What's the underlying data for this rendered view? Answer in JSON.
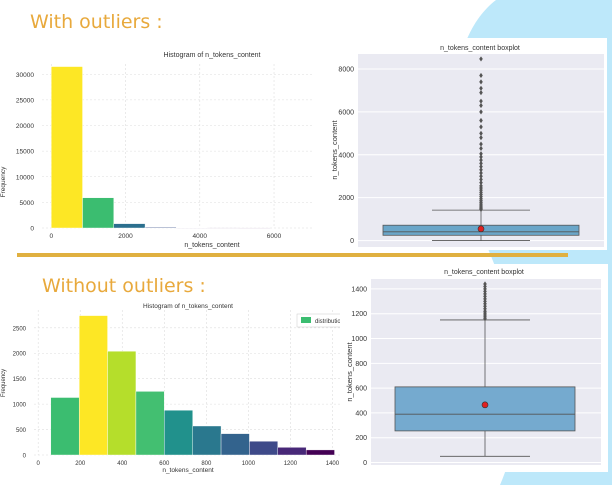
{
  "slide": {
    "heading_with": "With outliers :",
    "heading_without": "Without outliers :",
    "accent_color": "#e8a93c",
    "background_shape_color": "#bde8fa"
  },
  "chart_data": [
    {
      "id": "hist_with",
      "type": "bar",
      "title": "Histogram of n_tokens_content",
      "xlabel": "n_tokens_content",
      "ylabel": "Frequency",
      "xlim": [
        -250,
        7050
      ],
      "ylim": [
        0,
        32000
      ],
      "x_ticks": [
        0,
        2000,
        4000,
        6000
      ],
      "y_ticks": [
        0,
        5000,
        10000,
        15000,
        20000,
        25000,
        30000
      ],
      "grid": true,
      "bins": [
        {
          "x0": 0,
          "x1": 842,
          "value": 31500,
          "color": "#fde725"
        },
        {
          "x0": 842,
          "x1": 1684,
          "value": 5900,
          "color": "#3bbd70"
        },
        {
          "x0": 1684,
          "x1": 2526,
          "value": 850,
          "color": "#2b6f8e"
        },
        {
          "x0": 2526,
          "x1": 3368,
          "value": 150,
          "color": "#3b528b"
        },
        {
          "x0": 3368,
          "x1": 4210,
          "value": 40,
          "color": "#472d7b"
        },
        {
          "x0": 4210,
          "x1": 5052,
          "value": 10,
          "color": "#471365"
        },
        {
          "x0": 5052,
          "x1": 5894,
          "value": 5,
          "color": "#440154"
        }
      ]
    },
    {
      "id": "box_with",
      "type": "box",
      "title": "n_tokens_content boxplot",
      "ylabel": "n_tokens_content",
      "ylim": [
        -300,
        8700
      ],
      "y_ticks": [
        0,
        2000,
        4000,
        6000,
        8000
      ],
      "min": 0,
      "q1": 246,
      "median": 409,
      "q3": 716,
      "whisker_high": 1420,
      "mean": 546,
      "outliers": [
        1450,
        1500,
        1560,
        1620,
        1700,
        1780,
        1860,
        1950,
        2050,
        2150,
        2250,
        2350,
        2450,
        2550,
        2700,
        2850,
        3000,
        3150,
        3300,
        3450,
        3600,
        3750,
        3900,
        4050,
        4300,
        4500,
        4800,
        5000,
        5300,
        5600,
        6000,
        6300,
        6500,
        6900,
        7100,
        7400,
        7700,
        8470
      ],
      "box_color": "#6aa6c9",
      "mean_color": "#e02020"
    },
    {
      "id": "hist_without",
      "type": "bar",
      "title": "Histogram of n_tokens_content",
      "xlabel": "n_tokens_content",
      "ylabel": "Frequency",
      "legend": [
        "distribution"
      ],
      "legend_position": "top-right",
      "xlim": [
        -20,
        1455
      ],
      "ylim": [
        0,
        2850
      ],
      "x_ticks": [
        0,
        200,
        400,
        600,
        800,
        1000,
        1200,
        1400
      ],
      "y_ticks": [
        0,
        500,
        1000,
        1500,
        2000,
        2500
      ],
      "grid": true,
      "bins": [
        {
          "x0": 60,
          "x1": 195,
          "value": 1130,
          "color": "#3bbd70"
        },
        {
          "x0": 195,
          "x1": 330,
          "value": 2740,
          "color": "#fde725"
        },
        {
          "x0": 330,
          "x1": 465,
          "value": 2040,
          "color": "#b5de2b"
        },
        {
          "x0": 465,
          "x1": 600,
          "value": 1250,
          "color": "#43bf71"
        },
        {
          "x0": 600,
          "x1": 735,
          "value": 880,
          "color": "#21918c"
        },
        {
          "x0": 735,
          "x1": 870,
          "value": 570,
          "color": "#2a788e"
        },
        {
          "x0": 870,
          "x1": 1005,
          "value": 420,
          "color": "#33638d"
        },
        {
          "x0": 1005,
          "x1": 1140,
          "value": 270,
          "color": "#3e4a89"
        },
        {
          "x0": 1140,
          "x1": 1275,
          "value": 150,
          "color": "#482878"
        },
        {
          "x0": 1275,
          "x1": 1410,
          "value": 100,
          "color": "#440154"
        }
      ]
    },
    {
      "id": "box_without",
      "type": "box",
      "title": "n_tokens_content boxplot",
      "ylabel": "n_tokens_content",
      "ylim": [
        -20,
        1480
      ],
      "y_ticks": [
        0,
        200,
        400,
        600,
        800,
        1000,
        1200,
        1400
      ],
      "min": 50,
      "q1": 255,
      "median": 390,
      "q3": 610,
      "whisker_high": 1150,
      "mean": 465,
      "outliers": [
        1160,
        1175,
        1190,
        1205,
        1220,
        1240,
        1260,
        1280,
        1300,
        1320,
        1340,
        1360,
        1380,
        1400,
        1420,
        1440
      ],
      "box_color": "#75aacf",
      "mean_color": "#e02020"
    }
  ]
}
